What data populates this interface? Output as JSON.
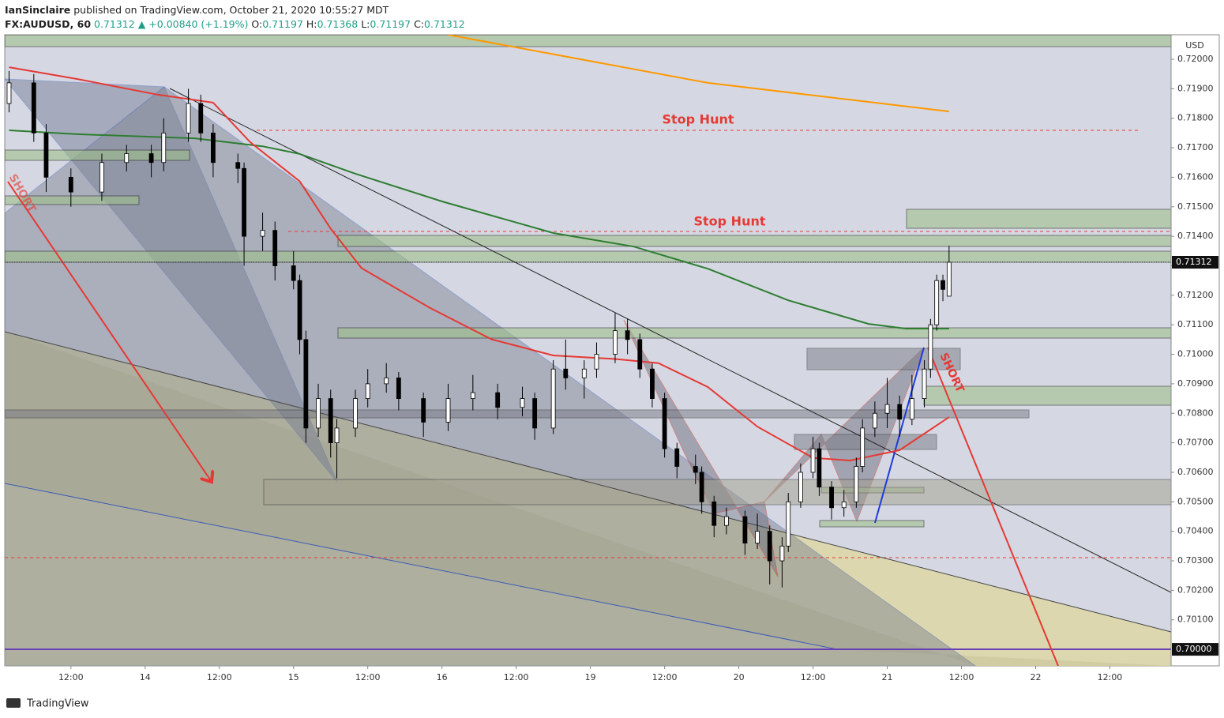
{
  "header": {
    "author": "IanSinclaire",
    "published": "published on TradingView.com, October 21, 2020 10:55:27 MDT",
    "symbol": "FX:AUDUSD, 60",
    "last": "0.71312",
    "arrow": "▲",
    "change": "+0.00840 (+1.19%)",
    "o_label": "O:",
    "o": "0.71197",
    "h_label": "H:",
    "h": "0.71368",
    "l_label": "L:",
    "l": "0.71197",
    "c_label": "C:",
    "c": "0.71312"
  },
  "footer": {
    "brand": "TradingView"
  },
  "chart_data": {
    "type": "candlestick",
    "currency": "USD",
    "up_color": "#ffffff",
    "down_color": "#000000",
    "x": [
      -22,
      -18,
      -16,
      -12,
      -7,
      -3,
      1,
      3,
      7,
      9,
      11,
      15,
      16,
      19,
      21,
      24,
      25,
      26,
      28,
      30,
      31,
      34,
      36,
      39,
      41,
      45,
      49,
      53,
      57,
      61,
      63,
      66,
      68,
      71,
      73,
      76,
      78,
      80,
      82,
      84,
      86,
      89,
      90,
      92,
      94,
      97,
      99,
      101,
      103,
      104,
      106,
      108,
      109,
      111,
      113,
      115,
      116,
      118,
      120,
      122,
      124,
      126,
      127,
      128,
      129,
      130
    ],
    "open": [
      0.7185,
      0.7192,
      0.7175,
      0.716,
      0.7155,
      0.7165,
      0.7168,
      0.7165,
      0.7175,
      0.7185,
      0.7175,
      0.7165,
      0.7163,
      0.714,
      0.7142,
      0.713,
      0.7125,
      0.7105,
      0.7075,
      0.7085,
      0.707,
      0.7075,
      0.7085,
      0.709,
      0.7092,
      0.7085,
      0.7077,
      0.7085,
      0.7087,
      0.7082,
      0.7085,
      0.7075,
      0.7095,
      0.7092,
      0.7095,
      0.71,
      0.7108,
      0.7105,
      0.7095,
      0.7085,
      0.7068,
      0.7062,
      0.706,
      0.705,
      0.7042,
      0.7045,
      0.7036,
      0.704,
      0.703,
      0.7035,
      0.705,
      0.706,
      0.7068,
      0.7055,
      0.7048,
      0.705,
      0.7062,
      0.7075,
      0.708,
      0.7083,
      0.7078,
      0.7085,
      0.7095,
      0.711,
      0.7125,
      0.71197
    ],
    "high": [
      0.7196,
      0.7195,
      0.7178,
      0.7163,
      0.7168,
      0.7171,
      0.7171,
      0.718,
      0.719,
      0.7188,
      0.7178,
      0.7168,
      0.7165,
      0.7148,
      0.7145,
      0.7135,
      0.7127,
      0.7108,
      0.709,
      0.7088,
      0.7078,
      0.7088,
      0.7095,
      0.7097,
      0.7094,
      0.7087,
      0.709,
      0.7093,
      0.709,
      0.7089,
      0.7087,
      0.7098,
      0.7105,
      0.7098,
      0.7104,
      0.7114,
      0.7112,
      0.7107,
      0.7097,
      0.7087,
      0.707,
      0.7066,
      0.7062,
      0.7052,
      0.7048,
      0.7047,
      0.7046,
      0.7042,
      0.7038,
      0.7053,
      0.7063,
      0.7072,
      0.707,
      0.7057,
      0.7054,
      0.7065,
      0.7078,
      0.7084,
      0.7092,
      0.7086,
      0.7093,
      0.7098,
      0.7112,
      0.7127,
      0.7127,
      0.71368
    ],
    "low": [
      0.7182,
      0.7172,
      0.7155,
      0.715,
      0.7152,
      0.7162,
      0.716,
      0.7162,
      0.7172,
      0.7172,
      0.716,
      0.7158,
      0.713,
      0.7135,
      0.7125,
      0.7122,
      0.71,
      0.707,
      0.7072,
      0.7065,
      0.7058,
      0.7072,
      0.7082,
      0.7087,
      0.7081,
      0.7072,
      0.7074,
      0.7081,
      0.7078,
      0.7079,
      0.7071,
      0.7073,
      0.7088,
      0.7085,
      0.7092,
      0.7097,
      0.71,
      0.7092,
      0.7082,
      0.7065,
      0.7058,
      0.7056,
      0.7046,
      0.7038,
      0.7039,
      0.7032,
      0.7034,
      0.7022,
      0.7021,
      0.7033,
      0.7048,
      0.7058,
      0.7052,
      0.7044,
      0.7045,
      0.7048,
      0.706,
      0.7072,
      0.7075,
      0.7072,
      0.7076,
      0.7082,
      0.7092,
      0.7108,
      0.7118,
      0.71197
    ],
    "close": [
      0.7192,
      0.7175,
      0.716,
      0.7155,
      0.7165,
      0.7168,
      0.7165,
      0.7175,
      0.7185,
      0.7175,
      0.7165,
      0.7163,
      0.714,
      0.7142,
      0.713,
      0.7125,
      0.7105,
      0.7075,
      0.7085,
      0.707,
      0.7075,
      0.7085,
      0.709,
      0.7092,
      0.7085,
      0.7077,
      0.7085,
      0.7087,
      0.7082,
      0.7085,
      0.7075,
      0.7095,
      0.7092,
      0.7095,
      0.71,
      0.7108,
      0.7105,
      0.7095,
      0.7085,
      0.7068,
      0.7062,
      0.706,
      0.705,
      0.7042,
      0.7045,
      0.7036,
      0.704,
      0.703,
      0.7035,
      0.705,
      0.706,
      0.7068,
      0.7055,
      0.7048,
      0.705,
      0.7062,
      0.7075,
      0.708,
      0.7083,
      0.7078,
      0.7085,
      0.7095,
      0.711,
      0.7125,
      0.7122,
      0.71312
    ],
    "xlim": [
      -22.7,
      165.9
    ],
    "xticks": [
      {
        "value": -12,
        "label": "12:00"
      },
      {
        "value": 0,
        "label": "14"
      },
      {
        "value": 12,
        "label": "12:00"
      },
      {
        "value": 24,
        "label": "15"
      },
      {
        "value": 36,
        "label": "12:00"
      },
      {
        "value": 48,
        "label": "16"
      },
      {
        "value": 60,
        "label": "12:00"
      },
      {
        "value": 72,
        "label": "19"
      },
      {
        "value": 84,
        "label": "12:00"
      },
      {
        "value": 96,
        "label": "20"
      },
      {
        "value": 108,
        "label": "12:00"
      },
      {
        "value": 120,
        "label": "21"
      },
      {
        "value": 132,
        "label": "12:00"
      },
      {
        "value": 144,
        "label": "22"
      },
      {
        "value": 156,
        "label": "12:00"
      }
    ],
    "ylim": [
      0.69944,
      0.72083
    ],
    "yticks": [
      {
        "value": 0.72,
        "label": "0.72000"
      },
      {
        "value": 0.719,
        "label": "0.71900"
      },
      {
        "value": 0.718,
        "label": "0.71800"
      },
      {
        "value": 0.717,
        "label": "0.71700"
      },
      {
        "value": 0.716,
        "label": "0.71600"
      },
      {
        "value": 0.715,
        "label": "0.71500"
      },
      {
        "value": 0.714,
        "label": "0.71400"
      },
      {
        "value": 0.713,
        "label": "0.71300"
      },
      {
        "value": 0.712,
        "label": "0.71200"
      },
      {
        "value": 0.711,
        "label": "0.71100"
      },
      {
        "value": 0.71,
        "label": "0.71000"
      },
      {
        "value": 0.709,
        "label": "0.70900"
      },
      {
        "value": 0.708,
        "label": "0.70800"
      },
      {
        "value": 0.707,
        "label": "0.70700"
      },
      {
        "value": 0.706,
        "label": "0.70600"
      },
      {
        "value": 0.705,
        "label": "0.70500"
      },
      {
        "value": 0.704,
        "label": "0.70400"
      },
      {
        "value": 0.703,
        "label": "0.70300"
      },
      {
        "value": 0.702,
        "label": "0.70200"
      },
      {
        "value": 0.701,
        "label": "0.70100"
      }
    ],
    "price_markers": [
      {
        "value": 0.71312,
        "label": "0.71312"
      },
      {
        "value": 0.7,
        "label": "0.70000"
      }
    ],
    "moving_averages": [
      {
        "color": "#2e7d32",
        "x": [
          -22,
          -11,
          8,
          19,
          25,
          34,
          48,
          66,
          79,
          91,
          104,
          117,
          123,
          130
        ],
        "values": [
          0.71759,
          0.71746,
          0.71732,
          0.71705,
          0.71679,
          0.71612,
          0.71518,
          0.71411,
          0.71365,
          0.7129,
          0.71183,
          0.71103,
          0.71087,
          0.71087
        ]
      },
      {
        "color": "#e53935",
        "x": [
          -22,
          -11,
          2,
          11,
          17,
          25,
          30,
          35,
          46,
          56,
          66,
          76,
          83,
          91,
          99,
          108,
          114,
          122,
          130
        ],
        "values": [
          0.71973,
          0.71933,
          0.7188,
          0.71853,
          0.71719,
          0.71586,
          0.71426,
          0.71292,
          0.71158,
          0.71051,
          0.70996,
          0.70984,
          0.7097,
          0.70889,
          0.70755,
          0.70649,
          0.7064,
          0.70675,
          0.70787
        ]
      },
      {
        "color": "#ff9800",
        "x": [
          49,
          91,
          130
        ],
        "values": [
          0.72083,
          0.7192,
          0.71823
        ]
      }
    ],
    "annotations": [
      {
        "text": "Stop Hunt"
      },
      {
        "text": "Stop Hunt"
      },
      {
        "text": "SHORT"
      },
      {
        "text": "SHORT"
      }
    ]
  }
}
